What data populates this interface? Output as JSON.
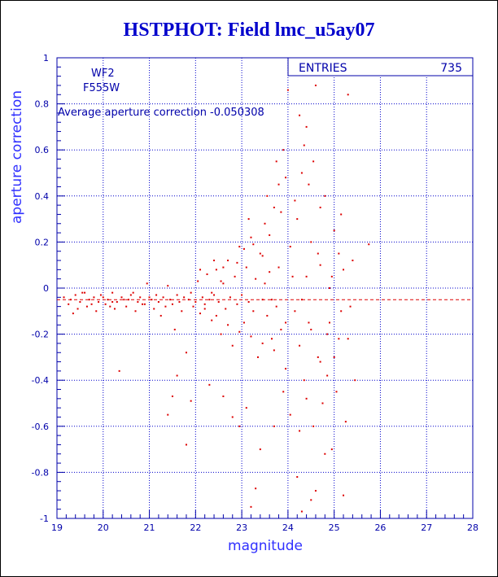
{
  "page": {
    "title": "HSTPHOT: Field lmc_u5ay07"
  },
  "stats_box": {
    "label": "ENTRIES",
    "value": "735"
  },
  "annotations": {
    "chip": "WF2",
    "filter": "F555W",
    "average_text": "Average aperture correction  -0.050308"
  },
  "colors": {
    "axis": "#0000aa",
    "grid": "#0000cc",
    "points": "#dd0000",
    "mean_line": "#dd0000",
    "title": "#0000cc",
    "axis_title": "#3030ff"
  },
  "chart_data": {
    "type": "scatter",
    "title": "HSTPHOT: Field lmc_u5ay07",
    "xlabel": "magnitude",
    "ylabel": "aperture correction",
    "xlim": [
      19,
      28
    ],
    "ylim": [
      -1,
      1
    ],
    "xticks": [
      "19",
      "20",
      "21",
      "22",
      "23",
      "24",
      "25",
      "26",
      "27",
      "28"
    ],
    "yticks": [
      "-1",
      "-0.8",
      "-0.6",
      "-0.4",
      "-0.2",
      "0",
      "0.2",
      "0.4",
      "0.6",
      "0.8",
      "1"
    ],
    "grid": true,
    "grid_style": "dotted",
    "mean_line": -0.050308,
    "entries": 735,
    "points": [
      [
        19.15,
        -0.04
      ],
      [
        19.25,
        -0.07
      ],
      [
        19.3,
        -0.05
      ],
      [
        19.4,
        -0.03
      ],
      [
        19.45,
        -0.09
      ],
      [
        19.5,
        -0.06
      ],
      [
        19.6,
        -0.02
      ],
      [
        19.65,
        -0.08
      ],
      [
        19.7,
        -0.05
      ],
      [
        19.8,
        -0.04
      ],
      [
        19.85,
        -0.1
      ],
      [
        19.9,
        -0.06
      ],
      [
        19.95,
        -0.03
      ],
      [
        20.05,
        -0.07
      ],
      [
        20.1,
        -0.05
      ],
      [
        20.2,
        -0.02
      ],
      [
        20.25,
        -0.09
      ],
      [
        20.3,
        -0.06
      ],
      [
        20.35,
        -0.36
      ],
      [
        20.4,
        -0.04
      ],
      [
        20.5,
        -0.08
      ],
      [
        20.55,
        -0.05
      ],
      [
        20.6,
        -0.03
      ],
      [
        20.7,
        -0.1
      ],
      [
        20.75,
        -0.06
      ],
      [
        20.8,
        -0.04
      ],
      [
        20.9,
        -0.07
      ],
      [
        20.95,
        0.02
      ],
      [
        21.05,
        -0.05
      ],
      [
        21.1,
        -0.09
      ],
      [
        21.15,
        -0.03
      ],
      [
        21.2,
        -0.06
      ],
      [
        21.25,
        -0.12
      ],
      [
        21.3,
        -0.04
      ],
      [
        21.35,
        -0.08
      ],
      [
        21.4,
        0.01
      ],
      [
        21.45,
        -0.05
      ],
      [
        21.5,
        -0.07
      ],
      [
        21.55,
        -0.18
      ],
      [
        21.6,
        -0.03
      ],
      [
        21.65,
        -0.06
      ],
      [
        21.7,
        -0.1
      ],
      [
        21.75,
        -0.04
      ],
      [
        21.8,
        -0.28
      ],
      [
        21.85,
        -0.05
      ],
      [
        21.9,
        -0.02
      ],
      [
        21.95,
        -0.08
      ],
      [
        22.0,
        -0.06
      ],
      [
        22.05,
        0.03
      ],
      [
        22.1,
        -0.11
      ],
      [
        22.15,
        -0.04
      ],
      [
        22.2,
        -0.07
      ],
      [
        22.25,
        0.06
      ],
      [
        22.3,
        -0.05
      ],
      [
        22.35,
        -0.14
      ],
      [
        22.4,
        -0.03
      ],
      [
        22.45,
        0.08
      ],
      [
        22.5,
        -0.06
      ],
      [
        22.55,
        -0.2
      ],
      [
        22.6,
        0.02
      ],
      [
        22.65,
        -0.09
      ],
      [
        22.7,
        0.12
      ],
      [
        22.75,
        -0.04
      ],
      [
        22.8,
        -0.25
      ],
      [
        22.85,
        0.05
      ],
      [
        22.9,
        -0.07
      ],
      [
        22.95,
        0.18
      ],
      [
        23.0,
        -0.03
      ],
      [
        23.05,
        -0.15
      ],
      [
        23.1,
        0.09
      ],
      [
        23.15,
        -0.06
      ],
      [
        23.2,
        0.22
      ],
      [
        23.25,
        -0.1
      ],
      [
        23.3,
        0.04
      ],
      [
        23.35,
        -0.3
      ],
      [
        23.4,
        0.15
      ],
      [
        23.45,
        -0.05
      ],
      [
        23.5,
        0.28
      ],
      [
        23.55,
        -0.12
      ],
      [
        23.6,
        0.07
      ],
      [
        23.65,
        -0.22
      ],
      [
        23.7,
        0.35
      ],
      [
        23.75,
        -0.08
      ],
      [
        23.8,
        0.45
      ],
      [
        23.85,
        -0.18
      ],
      [
        23.9,
        0.6
      ],
      [
        23.95,
        -0.35
      ],
      [
        24.0,
        0.86
      ],
      [
        24.1,
        0.05
      ],
      [
        24.15,
        -0.1
      ],
      [
        24.2,
        0.3
      ],
      [
        24.25,
        -0.25
      ],
      [
        24.3,
        0.5
      ],
      [
        24.35,
        -0.4
      ],
      [
        24.4,
        0.7
      ],
      [
        24.45,
        -0.15
      ],
      [
        24.5,
        0.2
      ],
      [
        24.55,
        -0.6
      ],
      [
        24.6,
        0.88
      ],
      [
        24.65,
        -0.3
      ],
      [
        24.7,
        0.1
      ],
      [
        24.75,
        -0.5
      ],
      [
        24.8,
        0.4
      ],
      [
        24.85,
        -0.2
      ],
      [
        24.9,
        0.0
      ],
      [
        24.95,
        -0.7
      ],
      [
        25.0,
        0.25
      ],
      [
        25.05,
        -0.45
      ],
      [
        25.1,
        0.15
      ],
      [
        25.15,
        -0.1
      ],
      [
        25.2,
        0.08
      ],
      [
        25.25,
        -0.58
      ],
      [
        25.3,
        0.84
      ],
      [
        25.4,
        0.12
      ],
      [
        25.45,
        -0.4
      ],
      [
        25.75,
        0.19
      ],
      [
        21.5,
        -0.47
      ],
      [
        21.6,
        -0.38
      ],
      [
        21.8,
        -0.68
      ],
      [
        21.9,
        -0.49
      ],
      [
        22.3,
        -0.42
      ],
      [
        22.6,
        -0.47
      ],
      [
        22.8,
        -0.56
      ],
      [
        23.1,
        -0.52
      ],
      [
        23.4,
        -0.7
      ],
      [
        23.3,
        -0.87
      ],
      [
        23.2,
        -0.95
      ],
      [
        24.3,
        -0.97
      ],
      [
        24.5,
        -0.92
      ],
      [
        24.8,
        -0.72
      ],
      [
        23.7,
        -0.6
      ],
      [
        22.95,
        -0.6
      ],
      [
        21.4,
        -0.55
      ],
      [
        24.2,
        -0.82
      ],
      [
        25.2,
        -0.9
      ],
      [
        24.6,
        -0.88
      ],
      [
        20.2,
        -0.06
      ],
      [
        19.35,
        -0.11
      ],
      [
        19.55,
        -0.02
      ],
      [
        19.75,
        -0.07
      ],
      [
        20.0,
        -0.04
      ],
      [
        20.15,
        -0.08
      ],
      [
        20.45,
        -0.05
      ],
      [
        20.65,
        -0.02
      ],
      [
        20.85,
        -0.07
      ],
      [
        21.0,
        -0.04
      ],
      [
        22.1,
        0.08
      ],
      [
        22.4,
        0.12
      ],
      [
        22.6,
        0.09
      ],
      [
        22.9,
        0.11
      ],
      [
        23.05,
        0.17
      ],
      [
        23.25,
        0.19
      ],
      [
        23.45,
        0.14
      ],
      [
        23.6,
        0.23
      ],
      [
        23.15,
        0.3
      ],
      [
        23.85,
        0.33
      ],
      [
        22.2,
        -0.09
      ],
      [
        22.45,
        -0.12
      ],
      [
        22.7,
        -0.16
      ],
      [
        22.95,
        -0.19
      ],
      [
        23.2,
        -0.21
      ],
      [
        23.45,
        -0.24
      ],
      [
        23.7,
        -0.27
      ],
      [
        23.95,
        -0.15
      ],
      [
        22.35,
        -0.02
      ],
      [
        22.55,
        0.03
      ],
      [
        23.5,
        0.02
      ],
      [
        23.65,
        -0.05
      ],
      [
        23.8,
        0.09
      ],
      [
        23.55,
        0.4
      ],
      [
        23.75,
        0.55
      ],
      [
        23.95,
        0.48
      ],
      [
        24.35,
        0.62
      ],
      [
        24.25,
        0.75
      ],
      [
        24.45,
        0.45
      ],
      [
        24.55,
        0.55
      ],
      [
        24.7,
        0.35
      ],
      [
        24.65,
        0.15
      ],
      [
        24.4,
        0.05
      ],
      [
        24.3,
        -0.05
      ],
      [
        24.5,
        -0.18
      ],
      [
        24.7,
        -0.32
      ],
      [
        24.85,
        -0.38
      ],
      [
        24.4,
        -0.48
      ],
      [
        24.25,
        -0.62
      ],
      [
        24.9,
        -0.15
      ],
      [
        25.0,
        -0.3
      ],
      [
        25.35,
        -0.08
      ],
      [
        25.1,
        -0.22
      ],
      [
        24.05,
        -0.55
      ],
      [
        23.9,
        -0.45
      ],
      [
        24.15,
        0.38
      ],
      [
        24.05,
        0.18
      ],
      [
        24.95,
        0.05
      ],
      [
        25.15,
        0.32
      ],
      [
        25.3,
        -0.22
      ]
    ]
  }
}
